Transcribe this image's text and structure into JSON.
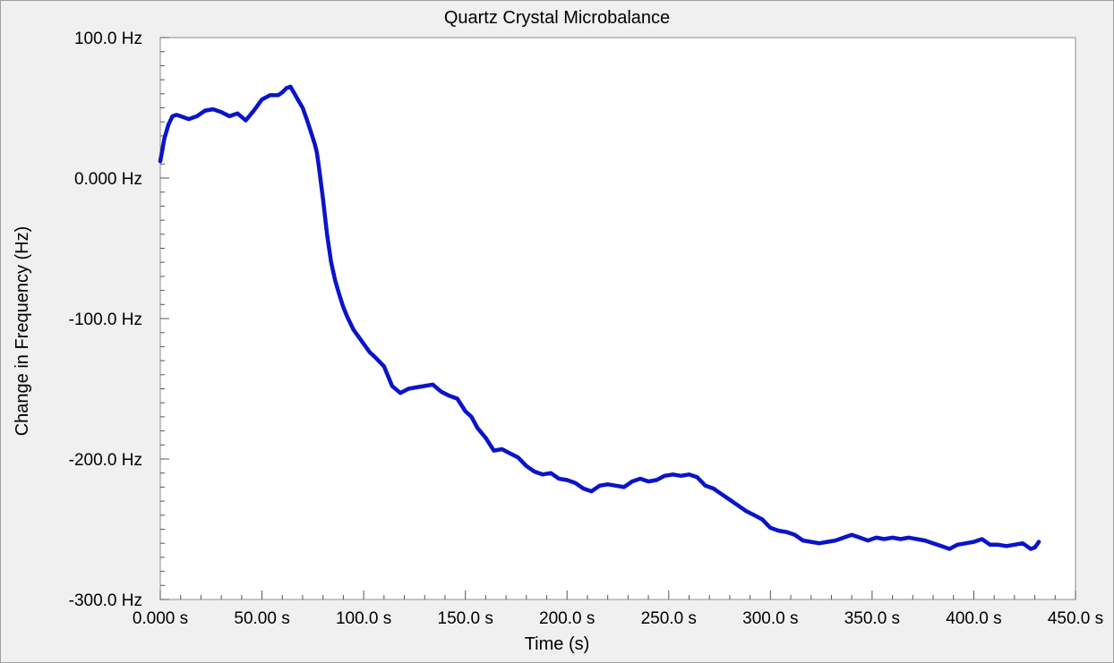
{
  "chart_data": {
    "type": "line",
    "title": "Quartz Crystal Microbalance",
    "xlabel": "Time (s)",
    "ylabel": "Change in Frequency (Hz)",
    "xlim": [
      0,
      450
    ],
    "ylim": [
      -300,
      100
    ],
    "grid": false,
    "x_ticks": [
      {
        "value": 0,
        "label": "0.000 s"
      },
      {
        "value": 50,
        "label": "50.00 s"
      },
      {
        "value": 100,
        "label": "100.0 s"
      },
      {
        "value": 150,
        "label": "150.0 s"
      },
      {
        "value": 200,
        "label": "200.0 s"
      },
      {
        "value": 250,
        "label": "250.0 s"
      },
      {
        "value": 300,
        "label": "300.0 s"
      },
      {
        "value": 350,
        "label": "350.0 s"
      },
      {
        "value": 400,
        "label": "400.0 s"
      },
      {
        "value": 450,
        "label": "450.0 s"
      }
    ],
    "y_ticks": [
      {
        "value": 100,
        "label": "100.0 Hz"
      },
      {
        "value": 0,
        "label": "0.000 Hz"
      },
      {
        "value": -100,
        "label": "-100.0 Hz"
      },
      {
        "value": -200,
        "label": "-200.0 Hz"
      },
      {
        "value": -300,
        "label": "-300.0 Hz"
      }
    ],
    "series": [
      {
        "color": "#0a14c8",
        "x": [
          0,
          2,
          4,
          6,
          8,
          10,
          14,
          18,
          22,
          26,
          30,
          34,
          38,
          42,
          46,
          50,
          54,
          58,
          60,
          62,
          64,
          66,
          68,
          70,
          72,
          74,
          76,
          77,
          78,
          80,
          82,
          84,
          86,
          88,
          90,
          92,
          95,
          98,
          100,
          103,
          106,
          110,
          114,
          118,
          122,
          126,
          130,
          134,
          138,
          142,
          146,
          150,
          153,
          156,
          160,
          164,
          168,
          172,
          176,
          180,
          184,
          188,
          192,
          196,
          200,
          204,
          208,
          212,
          216,
          220,
          224,
          228,
          232,
          236,
          240,
          244,
          248,
          252,
          256,
          260,
          264,
          268,
          272,
          276,
          280,
          284,
          288,
          292,
          296,
          300,
          304,
          308,
          312,
          316,
          320,
          324,
          328,
          332,
          336,
          340,
          344,
          348,
          352,
          356,
          360,
          364,
          368,
          372,
          376,
          380,
          384,
          388,
          392,
          396,
          400,
          404,
          408,
          412,
          416,
          420,
          424,
          426,
          428,
          430,
          432
        ],
        "y": [
          12,
          28,
          38,
          44,
          45,
          44,
          42,
          44,
          48,
          49,
          47,
          44,
          46,
          41,
          48,
          56,
          59,
          59,
          61,
          64,
          65,
          60,
          55,
          50,
          42,
          33,
          24,
          18,
          8,
          -15,
          -40,
          -60,
          -73,
          -83,
          -92,
          -99,
          -108,
          -114,
          -118,
          -124,
          -128,
          -134,
          -148,
          -153,
          -150,
          -149,
          -148,
          -147,
          -152,
          -155,
          -157,
          -166,
          -170,
          -178,
          -185,
          -194,
          -193,
          -196,
          -199,
          -205,
          -209,
          -211,
          -210,
          -214,
          -215,
          -217,
          -221,
          -223,
          -219,
          -218,
          -219,
          -220,
          -216,
          -214,
          -216,
          -215,
          -212,
          -211,
          -212,
          -211,
          -213,
          -219,
          -221,
          -225,
          -229,
          -233,
          -237,
          -240,
          -243,
          -249,
          -251,
          -252,
          -254,
          -258,
          -259,
          -260,
          -259,
          -258,
          -256,
          -254,
          -256,
          -258,
          -256,
          -257,
          -256,
          -257,
          -256,
          -257,
          -258,
          -260,
          -262,
          -264,
          -261,
          -260,
          -259,
          -257,
          -261,
          -261,
          -262,
          -261,
          -260,
          -262,
          -264,
          -263,
          -259
        ]
      }
    ]
  }
}
